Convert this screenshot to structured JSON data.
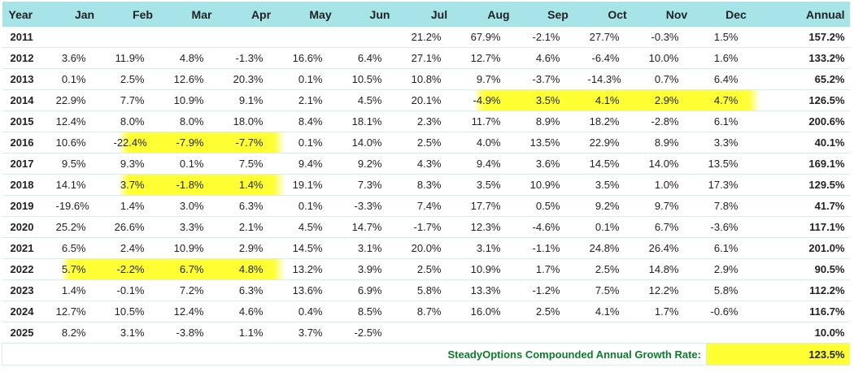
{
  "headers": [
    "Year",
    "Jan",
    "Feb",
    "Mar",
    "Apr",
    "May",
    "Jun",
    "Jul",
    "Aug",
    "Sep",
    "Oct",
    "Nov",
    "Dec",
    "Annual"
  ],
  "rows": [
    {
      "year": "2011",
      "months": [
        "",
        "",
        "",
        "",
        "",
        "",
        "21.2%",
        "67.9%",
        "-2.1%",
        "27.7%",
        "-0.3%",
        "1.5%"
      ],
      "annual": "157.2%"
    },
    {
      "year": "2012",
      "months": [
        "3.6%",
        "11.9%",
        "4.8%",
        "-1.3%",
        "16.6%",
        "6.4%",
        "27.1%",
        "12.7%",
        "4.6%",
        "-6.4%",
        "10.0%",
        "1.6%"
      ],
      "annual": "133.2%"
    },
    {
      "year": "2013",
      "months": [
        "0.1%",
        "2.5%",
        "12.6%",
        "20.3%",
        "0.1%",
        "10.5%",
        "10.8%",
        "9.7%",
        "-3.7%",
        "-14.3%",
        "0.7%",
        "6.4%"
      ],
      "annual": "65.2%"
    },
    {
      "year": "2014",
      "months": [
        "22.9%",
        "7.7%",
        "10.9%",
        "9.1%",
        "2.1%",
        "4.5%",
        "20.1%",
        "-4.9%",
        "3.5%",
        "4.1%",
        "2.9%",
        "4.7%"
      ],
      "annual": "126.5%"
    },
    {
      "year": "2015",
      "months": [
        "12.4%",
        "8.0%",
        "8.0%",
        "18.0%",
        "8.4%",
        "18.1%",
        "2.3%",
        "11.7%",
        "8.9%",
        "18.2%",
        "-2.8%",
        "6.1%"
      ],
      "annual": "200.6%"
    },
    {
      "year": "2016",
      "months": [
        "10.6%",
        "-22.4%",
        "-7.9%",
        "-7.7%",
        "0.1%",
        "14.0%",
        "2.5%",
        "4.0%",
        "13.5%",
        "22.9%",
        "8.9%",
        "3.3%"
      ],
      "annual": "40.1%"
    },
    {
      "year": "2017",
      "months": [
        "9.5%",
        "9.3%",
        "0.1%",
        "7.5%",
        "9.4%",
        "9.2%",
        "4.3%",
        "9.4%",
        "3.6%",
        "14.5%",
        "14.0%",
        "13.5%"
      ],
      "annual": "169.1%"
    },
    {
      "year": "2018",
      "months": [
        "14.1%",
        "3.7%",
        "-1.8%",
        "1.4%",
        "19.1%",
        "7.3%",
        "8.3%",
        "3.5%",
        "10.9%",
        "3.5%",
        "1.0%",
        "17.3%"
      ],
      "annual": "129.5%"
    },
    {
      "year": "2019",
      "months": [
        "-19.6%",
        "1.4%",
        "3.0%",
        "6.3%",
        "0.1%",
        "-3.3%",
        "7.4%",
        "17.7%",
        "0.5%",
        "9.2%",
        "9.7%",
        "7.8%"
      ],
      "annual": "41.7%"
    },
    {
      "year": "2020",
      "months": [
        "25.2%",
        "26.6%",
        "3.3%",
        "2.1%",
        "4.5%",
        "14.7%",
        "-1.7%",
        "12.3%",
        "-4.6%",
        "0.1%",
        "6.7%",
        "-3.6%"
      ],
      "annual": "117.1%"
    },
    {
      "year": "2021",
      "months": [
        "6.5%",
        "2.4%",
        "10.9%",
        "2.9%",
        "14.5%",
        "3.1%",
        "20.0%",
        "3.1%",
        "-1.1%",
        "24.8%",
        "26.4%",
        "6.1%"
      ],
      "annual": "201.0%"
    },
    {
      "year": "2022",
      "months": [
        "5.7%",
        "-2.2%",
        "6.7%",
        "4.8%",
        "13.2%",
        "3.9%",
        "2.5%",
        "10.9%",
        "1.7%",
        "2.5%",
        "14.8%",
        "2.9%"
      ],
      "annual": "90.5%"
    },
    {
      "year": "2023",
      "months": [
        "1.4%",
        "-0.1%",
        "7.2%",
        "6.3%",
        "13.6%",
        "6.9%",
        "5.8%",
        "13.3%",
        "-1.2%",
        "7.5%",
        "12.2%",
        "5.8%"
      ],
      "annual": "112.2%"
    },
    {
      "year": "2024",
      "months": [
        "12.7%",
        "10.5%",
        "12.4%",
        "4.6%",
        "0.4%",
        "8.5%",
        "8.7%",
        "16.0%",
        "2.5%",
        "4.1%",
        "1.7%",
        "-0.6%"
      ],
      "annual": "116.7%"
    },
    {
      "year": "2025",
      "months": [
        "8.2%",
        "3.1%",
        "-3.8%",
        "1.1%",
        "3.7%",
        "-2.5%",
        "",
        "",
        "",
        "",
        "",
        ""
      ],
      "annual": "10.0%"
    }
  ],
  "highlights": {
    "2014": [
      7,
      8,
      9,
      10,
      11
    ],
    "2016": [
      1,
      2,
      3
    ],
    "2018": [
      1,
      2,
      3
    ],
    "2022": [
      0,
      1,
      2,
      3
    ]
  },
  "footer": {
    "label": "SteadyOptions Compounded Annual Growth Rate:",
    "value": "123.5%"
  },
  "colors": {
    "header_bg": "#a6e4e8",
    "highlight": "#ffff33",
    "cagr_label": "#0a7d2a"
  }
}
